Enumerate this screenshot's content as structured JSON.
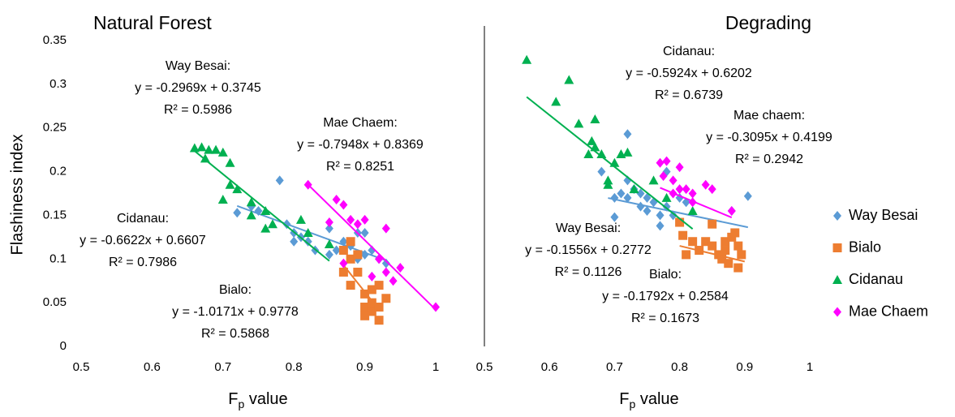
{
  "chart_data": [
    {
      "type": "scatter",
      "title": "Natural Forest",
      "y_label": "Flashiness index",
      "x_label": {
        "base": "F",
        "subscript": "p",
        "rest": " value"
      },
      "xlim": [
        0.5,
        1
      ],
      "xticks": [
        0.5,
        0.6,
        0.7,
        0.8,
        0.9,
        1
      ],
      "ylim": [
        0,
        0.35
      ],
      "yticks": [
        0,
        0.05,
        0.1,
        0.15,
        0.2,
        0.25,
        0.3,
        0.35
      ],
      "series": [
        {
          "color": "#5b9bd5",
          "marker": "diamond",
          "x": [
            0.72,
            0.74,
            0.75,
            0.78,
            0.79,
            0.8,
            0.81,
            0.82,
            0.83,
            0.85,
            0.86,
            0.87,
            0.88,
            0.89,
            0.9,
            0.91,
            0.92,
            0.93,
            0.89,
            0.9,
            0.85,
            0.8
          ],
          "values": [
            0.153,
            0.16,
            0.155,
            0.19,
            0.14,
            0.13,
            0.125,
            0.12,
            0.11,
            0.105,
            0.11,
            0.12,
            0.115,
            0.13,
            0.13,
            0.11,
            0.1,
            0.095,
            0.1,
            0.105,
            0.135,
            0.12
          ],
          "trendline": {
            "slope": -0.2969,
            "intercept": 0.3745,
            "x_range": [
              0.72,
              0.93
            ]
          },
          "label": [
            "Way Besai:",
            "y = -0.2969x + 0.3745",
            "R² = 0.5986"
          ]
        },
        {
          "color": "#ed7d31",
          "marker": "square",
          "x": [
            0.87,
            0.88,
            0.87,
            0.88,
            0.89,
            0.9,
            0.9,
            0.91,
            0.91,
            0.92,
            0.92,
            0.91,
            0.93,
            0.9,
            0.92,
            0.88,
            0.89
          ],
          "values": [
            0.11,
            0.12,
            0.085,
            0.07,
            0.085,
            0.06,
            0.045,
            0.05,
            0.065,
            0.07,
            0.03,
            0.04,
            0.055,
            0.035,
            0.045,
            0.1,
            0.105
          ],
          "trendline": {
            "slope": -1.0171,
            "intercept": 0.9778,
            "x_range": [
              0.87,
              0.92
            ]
          },
          "label": [
            "Bialo:",
            "y = -1.0171x + 0.9778",
            "R² = 0.5868"
          ],
          "label_color": "#c00000"
        },
        {
          "color": "#00b050",
          "marker": "triangle",
          "x": [
            0.66,
            0.67,
            0.675,
            0.68,
            0.69,
            0.7,
            0.71,
            0.71,
            0.7,
            0.74,
            0.74,
            0.76,
            0.76,
            0.77,
            0.81,
            0.82,
            0.85,
            0.72
          ],
          "values": [
            0.227,
            0.228,
            0.215,
            0.225,
            0.225,
            0.222,
            0.21,
            0.185,
            0.168,
            0.165,
            0.15,
            0.135,
            0.155,
            0.14,
            0.145,
            0.13,
            0.117,
            0.18
          ],
          "trendline": {
            "slope": -0.6622,
            "intercept": 0.6607,
            "x_range": [
              0.66,
              0.85
            ]
          },
          "label": [
            "Cidanau:",
            "y = -0.6622x + 0.6607",
            "R² = 0.7986"
          ]
        },
        {
          "color": "#ff00ff",
          "marker": "diamond",
          "x": [
            0.82,
            0.85,
            0.86,
            0.87,
            0.88,
            0.89,
            0.9,
            0.91,
            0.92,
            0.93,
            0.93,
            0.94,
            0.95,
            0.87,
            1.0
          ],
          "values": [
            0.185,
            0.142,
            0.168,
            0.162,
            0.145,
            0.14,
            0.145,
            0.08,
            0.1,
            0.135,
            0.085,
            0.075,
            0.09,
            0.095,
            0.045
          ],
          "trendline": {
            "slope": -0.7948,
            "intercept": 0.8369,
            "x_range": [
              0.82,
              1.0
            ]
          },
          "label": [
            "Mae Chaem:",
            "y = -0.7948x + 0.8369",
            "R² = 0.8251"
          ]
        }
      ]
    },
    {
      "type": "scatter",
      "title": "Degrading",
      "y_axis_line": true,
      "legend": "right",
      "x_label": {
        "base": "F",
        "subscript": "p",
        "rest": " value"
      },
      "xlim": [
        0.5,
        1
      ],
      "xticks": [
        0.5,
        0.6,
        0.7,
        0.8,
        0.9,
        1
      ],
      "ylim": [
        0,
        0.35
      ],
      "series": [
        {
          "name": "Way Besai",
          "color": "#5b9bd5",
          "marker": "diamond",
          "x": [
            0.68,
            0.7,
            0.7,
            0.72,
            0.71,
            0.72,
            0.73,
            0.74,
            0.74,
            0.75,
            0.76,
            0.77,
            0.77,
            0.78,
            0.79,
            0.78,
            0.8,
            0.81,
            0.72,
            0.905,
            0.88,
            0.75
          ],
          "values": [
            0.2,
            0.148,
            0.17,
            0.243,
            0.175,
            0.17,
            0.18,
            0.175,
            0.16,
            0.155,
            0.165,
            0.15,
            0.138,
            0.16,
            0.15,
            0.2,
            0.17,
            0.165,
            0.19,
            0.172,
            0.155,
            0.17
          ],
          "trendline": {
            "slope": -0.1556,
            "intercept": 0.2772,
            "x_range": [
              0.69,
              0.905
            ]
          },
          "label": [
            "Way Besai:",
            "y = -0.1556x + 0.2772",
            "R² = 0.1126"
          ]
        },
        {
          "name": "Bialo",
          "color": "#ed7d31",
          "marker": "square",
          "x": [
            0.8,
            0.805,
            0.81,
            0.82,
            0.83,
            0.84,
            0.85,
            0.85,
            0.86,
            0.865,
            0.87,
            0.87,
            0.875,
            0.88,
            0.885,
            0.89,
            0.89,
            0.895
          ],
          "values": [
            0.142,
            0.127,
            0.105,
            0.12,
            0.11,
            0.12,
            0.14,
            0.115,
            0.105,
            0.1,
            0.12,
            0.11,
            0.095,
            0.125,
            0.13,
            0.115,
            0.09,
            0.105
          ],
          "trendline": {
            "slope": -0.1792,
            "intercept": 0.2584,
            "x_range": [
              0.8,
              0.9
            ]
          },
          "label": [
            "Bialo:",
            "y = -0.1792x + 0.2584",
            "R² = 0.1673"
          ],
          "label_color": "#c00000"
        },
        {
          "name": "Cidanau",
          "color": "#00b050",
          "marker": "triangle",
          "x": [
            0.565,
            0.61,
            0.63,
            0.645,
            0.66,
            0.665,
            0.67,
            0.67,
            0.68,
            0.69,
            0.69,
            0.7,
            0.71,
            0.72,
            0.76,
            0.78,
            0.73,
            0.82
          ],
          "values": [
            0.328,
            0.28,
            0.305,
            0.255,
            0.22,
            0.235,
            0.228,
            0.26,
            0.22,
            0.19,
            0.185,
            0.21,
            0.22,
            0.222,
            0.19,
            0.17,
            0.18,
            0.155
          ],
          "trendline": {
            "slope": -0.5924,
            "intercept": 0.6202,
            "x_range": [
              0.565,
              0.82
            ]
          },
          "label": [
            "Cidanau:",
            "y = -0.5924x + 0.6202",
            "R² = 0.6739"
          ]
        },
        {
          "name": "Mae Chaem",
          "color": "#ff00ff",
          "marker": "diamond",
          "x": [
            0.77,
            0.78,
            0.775,
            0.79,
            0.8,
            0.79,
            0.81,
            0.82,
            0.82,
            0.84,
            0.85,
            0.88,
            0.8
          ],
          "values": [
            0.21,
            0.212,
            0.195,
            0.19,
            0.18,
            0.175,
            0.18,
            0.175,
            0.165,
            0.185,
            0.18,
            0.155,
            0.205
          ],
          "trendline": {
            "slope": -0.3095,
            "intercept": 0.4199,
            "x_range": [
              0.77,
              0.88
            ]
          },
          "label": [
            "Mae chaem:",
            "y = -0.3095x + 0.4199",
            "R² = 0.2942"
          ]
        }
      ]
    }
  ]
}
